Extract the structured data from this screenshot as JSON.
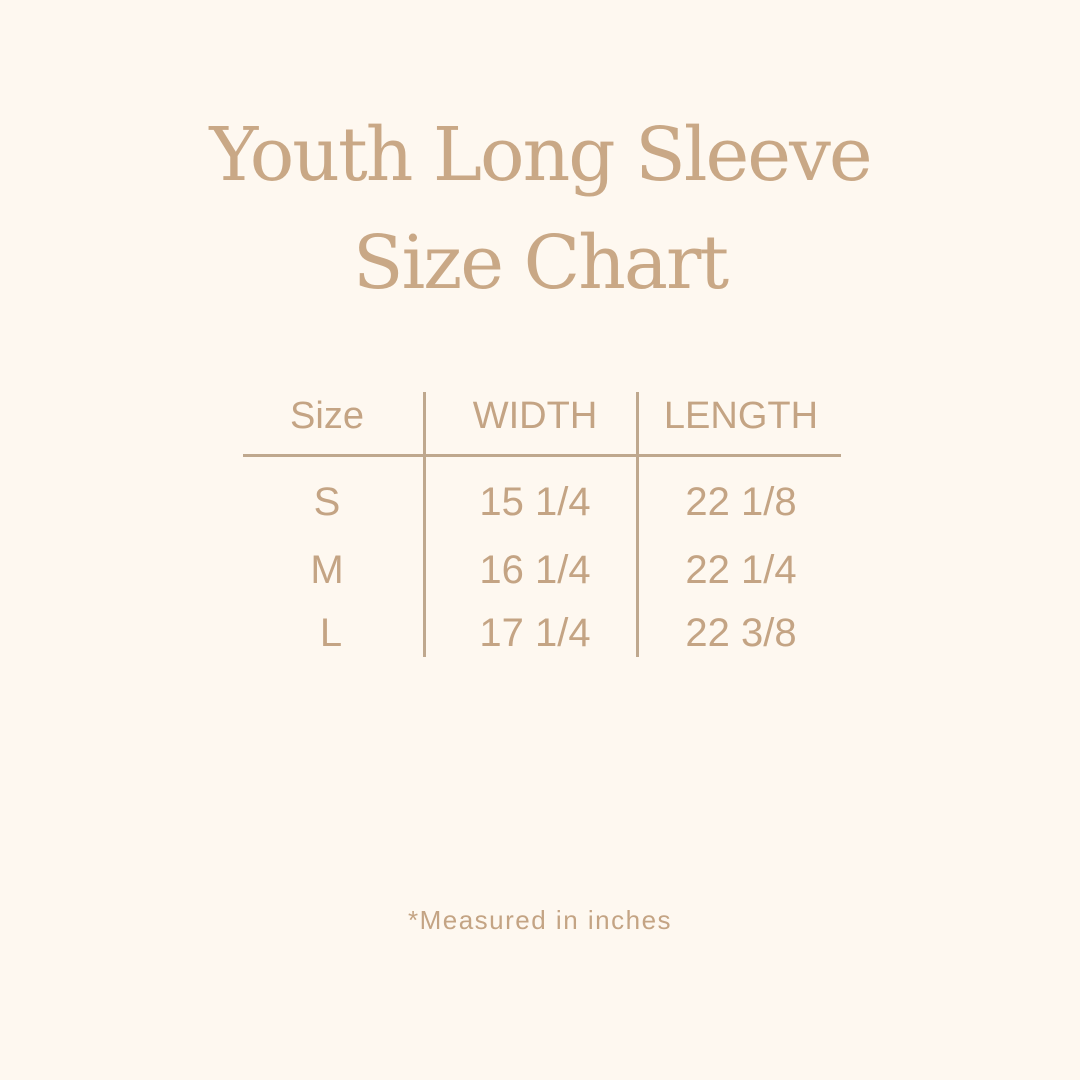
{
  "title": {
    "line1": "Youth Long Sleeve",
    "line2": "Size Chart"
  },
  "table": {
    "headers": [
      "Size",
      "WIDTH",
      "LENGTH"
    ],
    "rows": [
      [
        "S",
        "15 1/4",
        "22 1/8"
      ],
      [
        "M",
        "16 1/4",
        "22 1/4"
      ],
      [
        "L",
        "17 1/4",
        "22 3/8"
      ]
    ]
  },
  "footnote": "*Measured in inches",
  "colors": {
    "background": "#fef8f0",
    "text": "#c4a484",
    "rule": "#bfa88e"
  }
}
